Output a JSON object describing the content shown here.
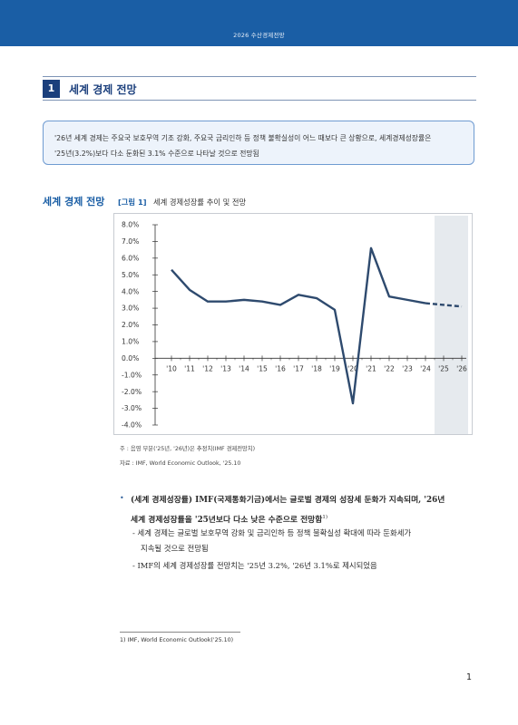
{
  "header": {
    "running_title": "2026 수산경제전망"
  },
  "section": {
    "number": "1",
    "title": "세계 경제 전망"
  },
  "summary": {
    "lines": [
      "'26년 세계 경제는 주요국 보호무역 기조 강화, 주요국 금리인하 등 정책 불확실성이 어느 때보다 큰 상황으로, 세계경제성장률은",
      "'25년(3.2%)보다 다소 둔화된 3.1% 수준으로 나타날 것으로 전망됨"
    ]
  },
  "figure": {
    "heading": "세계 경제 전망",
    "label": "[그림 1]",
    "title": "세계 경제성장률 추이 및 전망"
  },
  "chart_data": {
    "type": "line",
    "categories": [
      "'10",
      "'11",
      "'12",
      "'13",
      "'14",
      "'15",
      "'16",
      "'17",
      "'18",
      "'19",
      "'20",
      "'21",
      "'22",
      "'23",
      "'24",
      "'25",
      "'26"
    ],
    "series": [
      {
        "values": [
          5.3,
          4.1,
          3.4,
          3.4,
          3.5,
          3.4,
          3.2,
          3.8,
          3.6,
          2.9,
          -2.7,
          6.6,
          3.7,
          3.5,
          3.3,
          3.2,
          3.1
        ]
      }
    ],
    "estimate_from_index": 14,
    "shaded_categories": [
      "'25",
      "'26"
    ],
    "ylim": [
      -4.0,
      8.0
    ],
    "ytick_step": 1.0,
    "ytick_labels": [
      "8.0%",
      "7.0%",
      "6.0%",
      "5.0%",
      "4.0%",
      "3.0%",
      "2.0%",
      "1.0%",
      "0.0%",
      "-1.0%",
      "-2.0%",
      "-3.0%",
      "-4.0%"
    ],
    "line_color": "#2e4a6e",
    "shade_color": "#e6eaee",
    "grid": false,
    "xlabel": "",
    "ylabel": ""
  },
  "notes": {
    "note": "주 : 음영 부분('25년, '26년)은 추정치(IMF 경제전망치)",
    "source": "자료 : IMF, World Economic Outlook, '25.10"
  },
  "body": {
    "bullet_lines": [
      "(세계 경제성장률) IMF(국제통화기금)에서는 글로벌 경제의 성장세 둔화가 지속되며, '26년",
      "세계 경제성장률을 '25년보다 다소 낮은 수준으로 전망함"
    ],
    "bullet_footnote_ref": "1)",
    "sub1_lines": [
      "- 세계 경제는 글로벌 보호무역 강화 및 금리인하 등 정책 불확실성 확대에 따라 둔화세가",
      "지속될 것으로 전망됨"
    ],
    "sub2": "- IMF의 세계 경제성장률 전망치는 '25년 3.2%, '26년 3.1%로 제시되었음"
  },
  "footnote": "1) IMF, World Economic Outlook('25.10)",
  "page_number": "1"
}
